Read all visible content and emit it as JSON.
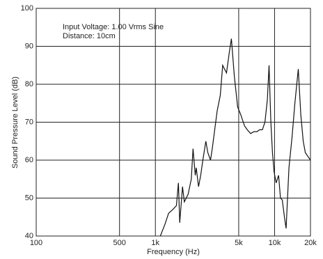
{
  "chart_data": {
    "type": "line",
    "annotations": [
      "Input Voltage: 1.00 Vrms Sine",
      "Distance: 10cm"
    ],
    "x_label": "Frequency (Hz)",
    "y_label": "Sound Pressure Level (dB)",
    "x_log": true,
    "grid": true,
    "xlim": [
      100,
      20000
    ],
    "ylim": [
      40,
      100
    ],
    "xticks": [
      100,
      500,
      {
        "value": 1000,
        "label": "1k"
      },
      {
        "value": 5000,
        "label": "5k"
      },
      {
        "value": 10000,
        "label": "10k"
      },
      {
        "value": 20000,
        "label": "20k"
      }
    ],
    "yticks": [
      40,
      50,
      60,
      70,
      80,
      90,
      100
    ],
    "series": [
      {
        "color": "#111111",
        "x": [
          1100,
          1200,
          1290,
          1400,
          1500,
          1560,
          1600,
          1690,
          1750,
          1880,
          2000,
          2070,
          2160,
          2200,
          2300,
          2400,
          2500,
          2650,
          2750,
          2900,
          3000,
          3300,
          3500,
          3670,
          3800,
          3950,
          4150,
          4340,
          4600,
          4900,
          5200,
          5600,
          5900,
          6300,
          6700,
          7100,
          7500,
          7900,
          8300,
          8700,
          8980,
          9300,
          9600,
          9900,
          10300,
          10800,
          11200,
          11600,
          12100,
          12500,
          13200,
          14000,
          14800,
          15800,
          16600,
          17400,
          18100,
          19000,
          20000
        ],
        "values": [
          40,
          43,
          46,
          47,
          48,
          54,
          43.5,
          53,
          49,
          51,
          55,
          63,
          56,
          58,
          53,
          56,
          60,
          65,
          62,
          60,
          63,
          73,
          77,
          85,
          84,
          83,
          88,
          92,
          82,
          74,
          72,
          69,
          68,
          67,
          67.5,
          67.5,
          68,
          68,
          70,
          76,
          85,
          70,
          62,
          57,
          54,
          56,
          50,
          49.5,
          45,
          42,
          58,
          66,
          75,
          84,
          72,
          65,
          62,
          61,
          60
        ]
      }
    ]
  }
}
